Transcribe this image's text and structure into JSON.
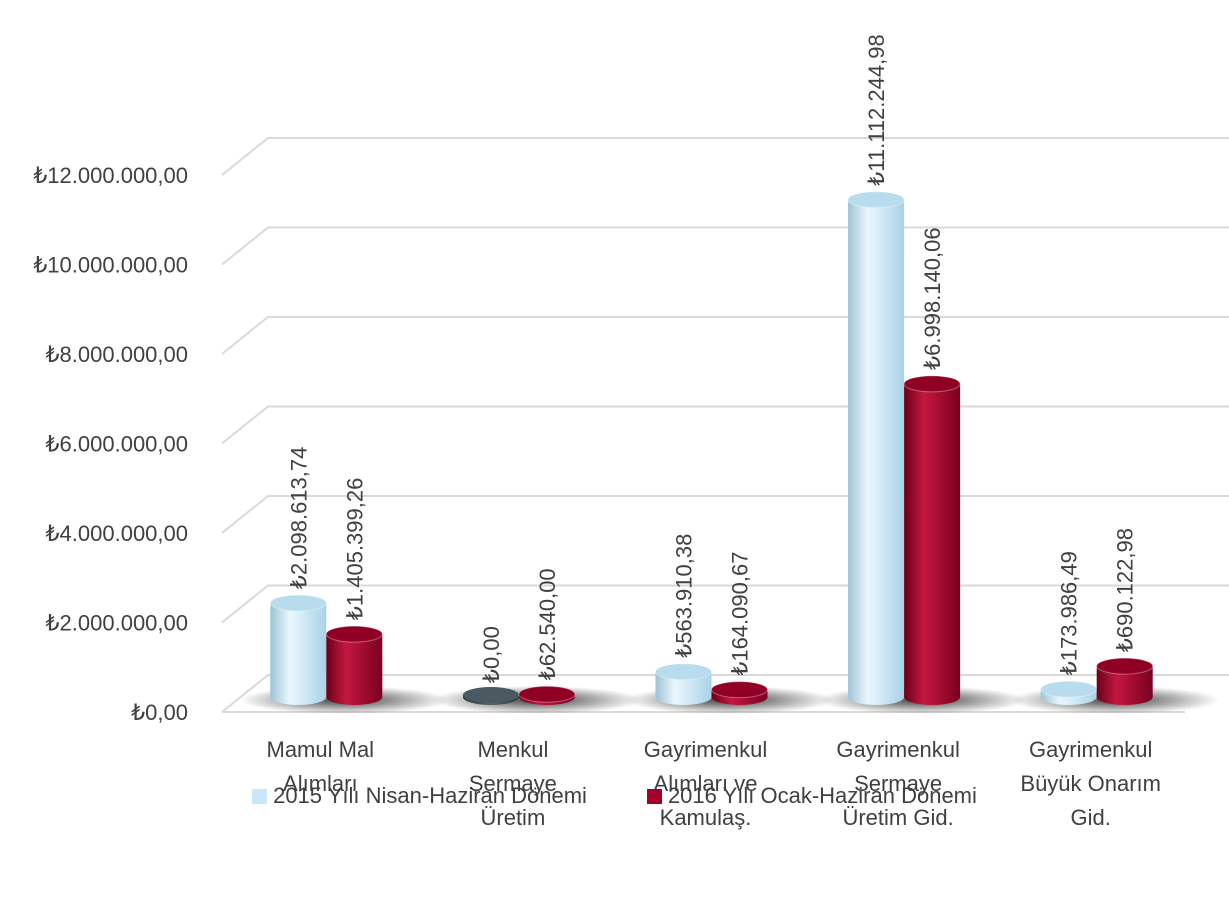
{
  "chart_data": {
    "type": "bar",
    "categories": [
      [
        "Mamul Mal",
        "Alımları"
      ],
      [
        "Menkul",
        "Sermaye",
        "Üretim"
      ],
      [
        "Gayrimenkul",
        "Alımları ve",
        "Kamulaş."
      ],
      [
        "Gayrimenkul",
        "Sermaye",
        "Üretim Gid."
      ],
      [
        "Gayrimenkul",
        "Büyük Onarım",
        "Gid."
      ]
    ],
    "series": [
      {
        "name": "2015 Yılı Nisan-Haziran Dönemi",
        "color": "#c9e8f7",
        "values": [
          2098613.74,
          0,
          563910.38,
          11112244.98,
          173986.49
        ],
        "labels": [
          "₺2.098.613,74",
          "₺0,00",
          "₺563.910,38",
          "₺11.112.244,98",
          "₺173.986,49"
        ]
      },
      {
        "name": "2016 Yılı Ocak-Haziran Dönemi",
        "color": "#a3002a",
        "values": [
          1405399.26,
          62540,
          164090.67,
          6998140.06,
          690122.98
        ],
        "labels": [
          "₺1.405.399,26",
          "₺62.540,00",
          "₺164.090,67",
          "₺6.998.140,06",
          "₺690.122,98"
        ]
      }
    ],
    "y_ticks": [
      {
        "value": 0,
        "label": "₺0,00"
      },
      {
        "value": 2000000,
        "label": "₺2.000.000,00"
      },
      {
        "value": 4000000,
        "label": "₺4.000.000,00"
      },
      {
        "value": 6000000,
        "label": "₺6.000.000,00"
      },
      {
        "value": 8000000,
        "label": "₺8.000.000,00"
      },
      {
        "value": 10000000,
        "label": "₺10.000.000,00"
      },
      {
        "value": 12000000,
        "label": "₺12.000.000,00"
      }
    ],
    "ylim": [
      0,
      12000000
    ],
    "grid": true,
    "legend_position": "bottom"
  }
}
